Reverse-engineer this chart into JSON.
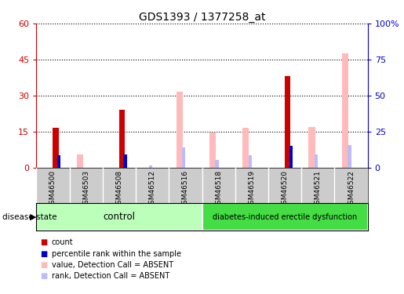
{
  "title": "GDS1393 / 1377258_at",
  "samples": [
    "GSM46500",
    "GSM46503",
    "GSM46508",
    "GSM46512",
    "GSM46516",
    "GSM46518",
    "GSM46519",
    "GSM46520",
    "GSM46521",
    "GSM46522"
  ],
  "count": [
    16.5,
    0,
    24,
    0,
    0,
    0,
    0,
    38,
    0,
    0
  ],
  "percentile_rank": [
    8.5,
    0,
    9,
    0,
    0,
    0,
    0,
    15,
    0,
    0
  ],
  "value_absent": [
    0,
    5.5,
    0,
    0,
    31.5,
    14.5,
    16.5,
    0,
    17,
    47.5
  ],
  "rank_absent": [
    0,
    0,
    0,
    1.5,
    14,
    5.5,
    8.5,
    0,
    9,
    15.5
  ],
  "left_ylim": [
    0,
    60
  ],
  "right_ylim": [
    0,
    100
  ],
  "left_yticks": [
    0,
    15,
    30,
    45,
    60
  ],
  "right_yticks": [
    0,
    25,
    50,
    75,
    100
  ],
  "left_tick_color": "#cc0000",
  "right_tick_color": "#0000cc",
  "control_label": "control",
  "disease_label": "diabetes-induced erectile dysfunction",
  "control_color": "#bbffbb",
  "disease_color": "#44dd44",
  "group_label": "disease state",
  "count_color": "#cc0000",
  "prank_color": "#0000cc",
  "value_absent_color": "#ffbbbb",
  "rank_absent_color": "#bbbbff",
  "bg_color": "#ffffff",
  "legend_items": [
    "count",
    "percentile rank within the sample",
    "value, Detection Call = ABSENT",
    "rank, Detection Call = ABSENT"
  ],
  "legend_colors": [
    "#cc0000",
    "#0000cc",
    "#ffbbbb",
    "#bbbbff"
  ]
}
